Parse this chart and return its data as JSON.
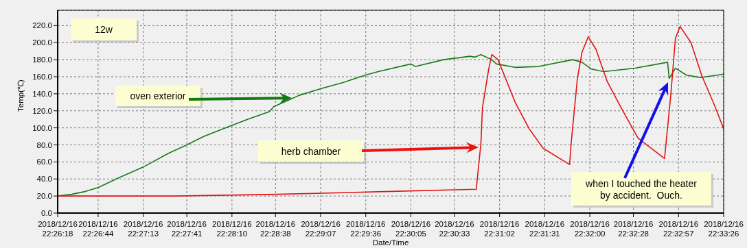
{
  "chart_data": {
    "type": "line",
    "xlabel": "Date/Time",
    "ylabel": "Temp(℃)",
    "xlim": [
      "2018-12-16T22:26:18",
      "2018-12-16T22:33:26"
    ],
    "xticks": [
      {
        "value": "2018-12-16T22:26:18",
        "label": "2018/12/16\n22:26:18"
      },
      {
        "value": "2018-12-16T22:26:44",
        "label": "2018/12/16\n22:26:44"
      },
      {
        "value": "2018-12-16T22:27:13",
        "label": "2018/12/16\n22:27:13"
      },
      {
        "value": "2018-12-16T22:27:41",
        "label": "2018/12/16\n22:27:41"
      },
      {
        "value": "2018-12-16T22:28:10",
        "label": "2018/12/16\n22:28:10"
      },
      {
        "value": "2018-12-16T22:28:38",
        "label": "2018/12/16\n22:28:38"
      },
      {
        "value": "2018-12-16T22:29:07",
        "label": "2018/12/16\n22:29:07"
      },
      {
        "value": "2018-12-16T22:29:36",
        "label": "2018/12/16\n22:29:36"
      },
      {
        "value": "2018-12-16T22:30:05",
        "label": "2018/12/16\n22:30:05"
      },
      {
        "value": "2018-12-16T22:30:33",
        "label": "2018/12/16\n22:30:33"
      },
      {
        "value": "2018-12-16T22:31:02",
        "label": "2018/12/16\n22:31:02"
      },
      {
        "value": "2018-12-16T22:31:31",
        "label": "2018/12/16\n22:31:31"
      },
      {
        "value": "2018-12-16T22:32:00",
        "label": "2018/12/16\n22:32:00"
      },
      {
        "value": "2018-12-16T22:32:28",
        "label": "2018/12/16\n22:32:28"
      },
      {
        "value": "2018-12-16T22:32:57",
        "label": "2018/12/16\n22:32:57"
      },
      {
        "value": "2018-12-16T22:33:26",
        "label": "2018/12/16\n22:33:26"
      }
    ],
    "ylim": [
      0,
      238
    ],
    "yticks": [
      {
        "value": 0,
        "label": "0.0"
      },
      {
        "value": 20,
        "label": "20.0"
      },
      {
        "value": 40,
        "label": "40.0"
      },
      {
        "value": 60,
        "label": "60.0"
      },
      {
        "value": 80,
        "label": "80.0"
      },
      {
        "value": 100,
        "label": "100.0"
      },
      {
        "value": 120,
        "label": "120.0"
      },
      {
        "value": 140,
        "label": "140.0"
      },
      {
        "value": 160,
        "label": "160.0"
      },
      {
        "value": 180,
        "label": "180.0"
      },
      {
        "value": 200,
        "label": "200.0"
      },
      {
        "value": 220,
        "label": "220.0"
      }
    ],
    "grid": true,
    "series": [
      {
        "color": "#167a16",
        "x": [
          "2018-12-16T22:26:18",
          "2018-12-16T22:26:27",
          "2018-12-16T22:26:35",
          "2018-12-16T22:26:44",
          "2018-12-16T22:26:58",
          "2018-12-16T22:27:13",
          "2018-12-16T22:27:29",
          "2018-12-16T22:27:41",
          "2018-12-16T22:27:52",
          "2018-12-16T22:28:10",
          "2018-12-16T22:28:20",
          "2018-12-16T22:28:34",
          "2018-12-16T22:28:37",
          "2018-12-16T22:28:47",
          "2018-12-16T22:28:53",
          "2018-12-16T22:29:07",
          "2018-12-16T22:29:21",
          "2018-12-16T22:29:36",
          "2018-12-16T22:29:44",
          "2018-12-16T22:30:05",
          "2018-12-16T22:30:08",
          "2018-12-16T22:30:26",
          "2018-12-16T22:30:43",
          "2018-12-16T22:30:46",
          "2018-12-16T22:30:50",
          "2018-12-16T22:30:57",
          "2018-12-16T22:31:00",
          "2018-12-16T22:31:12",
          "2018-12-16T22:31:27",
          "2018-12-16T22:31:49",
          "2018-12-16T22:31:55",
          "2018-12-16T22:32:01",
          "2018-12-16T22:32:09",
          "2018-12-16T22:32:29",
          "2018-12-16T22:32:50",
          "2018-12-16T22:32:51",
          "2018-12-16T22:32:55",
          "2018-12-16T22:33:02",
          "2018-12-16T22:33:11",
          "2018-12-16T22:33:26"
        ],
        "values": [
          20,
          22,
          25,
          30,
          42,
          54,
          70,
          80,
          90,
          103,
          110,
          119,
          125,
          133,
          138,
          146,
          153,
          162,
          166,
          175,
          172,
          180,
          184,
          183,
          186,
          180,
          175,
          171,
          172,
          180,
          177,
          169,
          166,
          170,
          177,
          158,
          170,
          162,
          159,
          163
        ]
      },
      {
        "color": "#e01414",
        "x": [
          "2018-12-16T22:26:18",
          "2018-12-16T22:27:34",
          "2018-12-16T22:28:39",
          "2018-12-16T22:29:44",
          "2018-12-16T22:30:47",
          "2018-12-16T22:30:50",
          "2018-12-16T22:30:51",
          "2018-12-16T22:30:55",
          "2018-12-16T22:30:57",
          "2018-12-16T22:31:01",
          "2018-12-16T22:31:12",
          "2018-12-16T22:31:21",
          "2018-12-16T22:31:30",
          "2018-12-16T22:31:47",
          "2018-12-16T22:31:48",
          "2018-12-16T22:31:52",
          "2018-12-16T22:31:55",
          "2018-12-16T22:31:59",
          "2018-12-16T22:32:04",
          "2018-12-16T22:32:11",
          "2018-12-16T22:32:20",
          "2018-12-16T22:32:31",
          "2018-12-16T22:32:48",
          "2018-12-16T22:32:52",
          "2018-12-16T22:32:55",
          "2018-12-16T22:32:58",
          "2018-12-16T22:33:05",
          "2018-12-16T22:33:12",
          "2018-12-16T22:33:20",
          "2018-12-16T22:33:26"
        ],
        "values": [
          20,
          20,
          22,
          25,
          28,
          82,
          124,
          169,
          186,
          180,
          130,
          99,
          76,
          57,
          82,
          158,
          189,
          207,
          192,
          155,
          124,
          88,
          64,
          138,
          205,
          219,
          200,
          161,
          127,
          99
        ]
      }
    ],
    "annotations": [
      "12w",
      "oven exterior",
      "herb chamber",
      "when I touched the heater\nby accident.  Ouch."
    ]
  }
}
